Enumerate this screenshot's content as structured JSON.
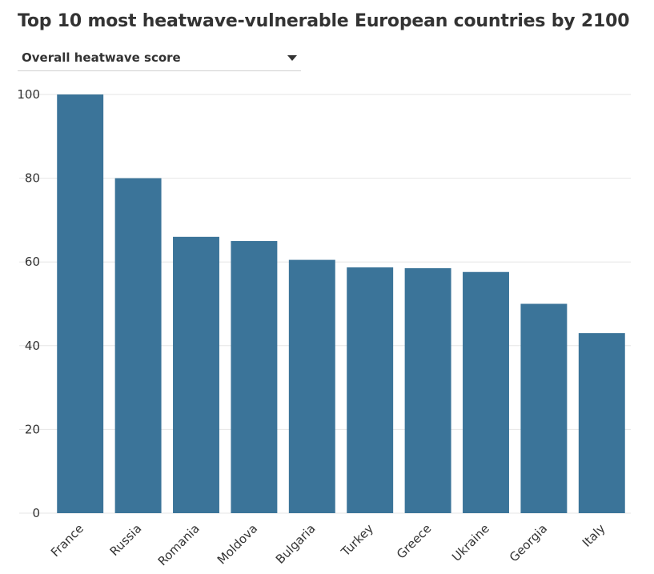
{
  "title": "Top 10 most heatwave-vulnerable European countries by 2100",
  "dropdown": {
    "selected": "Overall heatwave score"
  },
  "colors": {
    "bar": "#3b7499",
    "grid": "#e6e6e6",
    "text": "#333333"
  },
  "chart_data": {
    "type": "bar",
    "categories": [
      "France",
      "Russia",
      "Romania",
      "Moldova",
      "Bulgaria",
      "Turkey",
      "Greece",
      "Ukraine",
      "Georgia",
      "Italy"
    ],
    "values": [
      100,
      80,
      66,
      65,
      60.5,
      58.7,
      58.5,
      57.6,
      50,
      43
    ],
    "ylim": [
      0,
      100
    ],
    "yticks": [
      0,
      20,
      40,
      60,
      80,
      100
    ],
    "grid": true,
    "legend": "none"
  }
}
